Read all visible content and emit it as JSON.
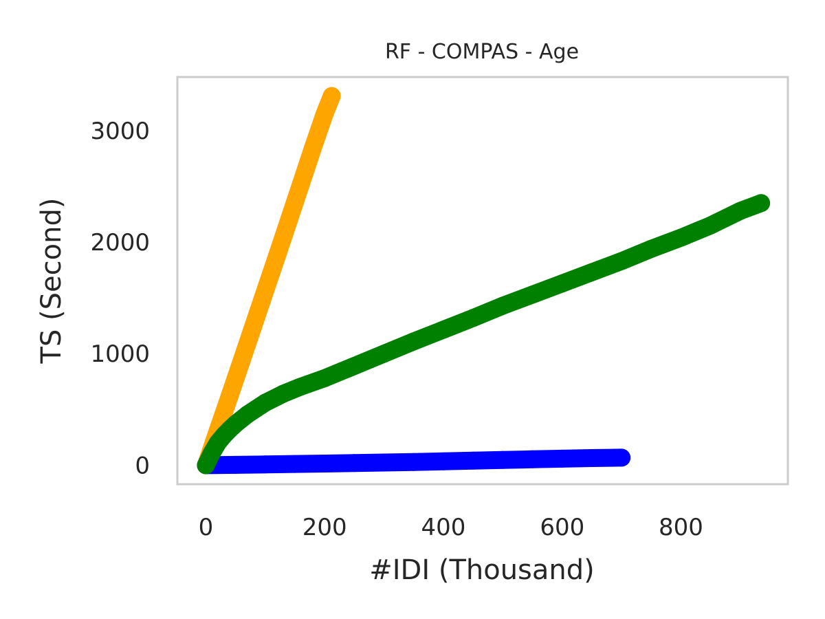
{
  "chart_data": {
    "type": "scatter",
    "title": "RF - COMPAS - Age",
    "xlabel": "#IDI (Thousand)",
    "ylabel": "TS (Second)",
    "xlim": [
      -48,
      980
    ],
    "ylim": [
      -170,
      3480
    ],
    "xticks": [
      0,
      200,
      400,
      600,
      800
    ],
    "yticks": [
      0,
      1000,
      2000,
      3000
    ],
    "xtick_labels": [
      "0",
      "200",
      "400",
      "600",
      "800"
    ],
    "ytick_labels": [
      "0",
      "1000",
      "2000",
      "3000"
    ],
    "grid": false,
    "legend": "none",
    "frame_color": "#cccccc",
    "series": [
      {
        "color": "#ffa500",
        "x": [
          0,
          20,
          40,
          60,
          80,
          100,
          120,
          140,
          160,
          180,
          200,
          212
        ],
        "y": [
          0,
          310,
          620,
          935,
          1250,
          1565,
          1880,
          2200,
          2520,
          2840,
          3150,
          3310
        ]
      },
      {
        "color": "#0000ff",
        "x": [
          0,
          50,
          100,
          150,
          200,
          250,
          300,
          350,
          400,
          450,
          500,
          550,
          600,
          650,
          700
        ],
        "y": [
          0,
          3,
          7,
          11,
          15,
          19,
          24,
          29,
          35,
          41,
          47,
          53,
          59,
          64,
          68
        ]
      },
      {
        "color": "#008000",
        "x": [
          0,
          10,
          20,
          30,
          40,
          50,
          70,
          100,
          130,
          160,
          200,
          250,
          300,
          350,
          400,
          450,
          500,
          550,
          600,
          650,
          700,
          750,
          800,
          850,
          900,
          935
        ],
        "y": [
          0,
          110,
          200,
          265,
          320,
          370,
          455,
          560,
          640,
          705,
          780,
          890,
          1000,
          1110,
          1215,
          1320,
          1430,
          1530,
          1630,
          1730,
          1830,
          1940,
          2040,
          2150,
          2280,
          2350
        ]
      }
    ]
  }
}
